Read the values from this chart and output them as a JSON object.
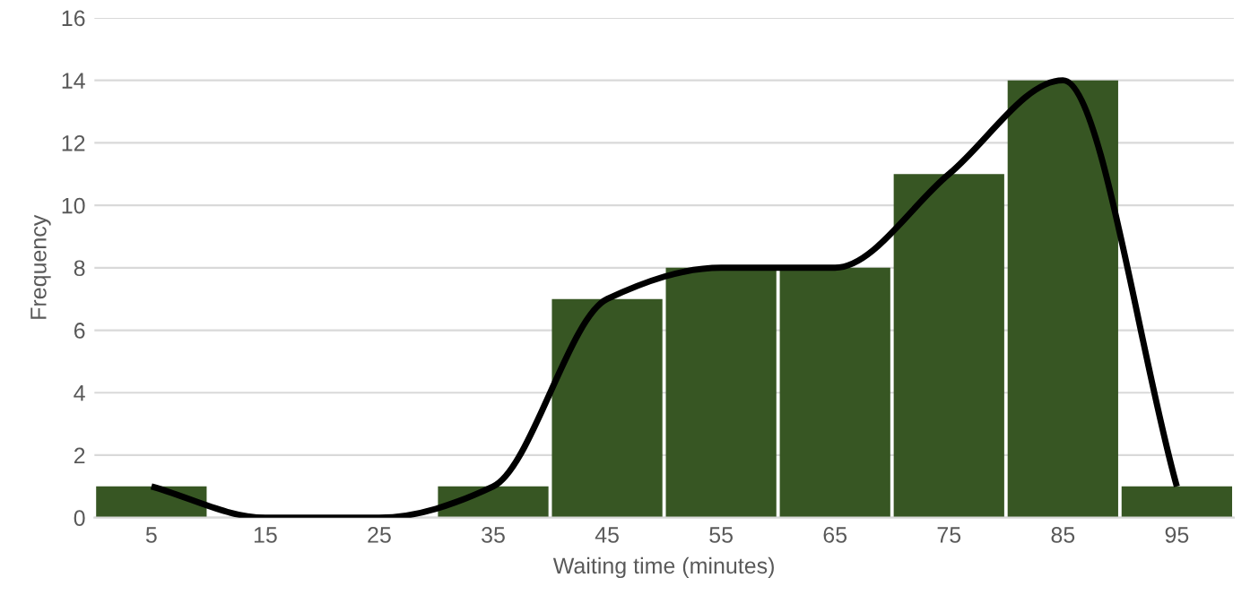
{
  "chart_data": {
    "type": "bar",
    "xlabel": "Waiting time (minutes)",
    "ylabel": "Frequency",
    "categories": [
      "5",
      "15",
      "25",
      "35",
      "45",
      "55",
      "65",
      "75",
      "85",
      "95"
    ],
    "series": [
      {
        "color": "#375623",
        "values": [
          1,
          0,
          0,
          1,
          7,
          8,
          8,
          11,
          14,
          1
        ]
      },
      {
        "type": "line",
        "color": "#000000",
        "values": [
          1,
          0,
          0,
          1,
          7,
          8,
          8,
          11,
          14,
          1
        ]
      }
    ],
    "ylim": [
      0,
      16
    ],
    "yticks": [
      0,
      2,
      4,
      6,
      8,
      10,
      12,
      14,
      16
    ],
    "grid": "y"
  }
}
